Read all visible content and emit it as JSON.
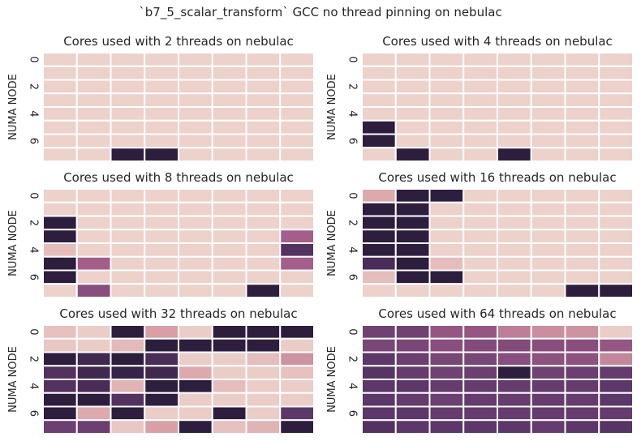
{
  "figure": {
    "title": "`b7_5_scalar_transform` GCC no thread pinning on nebulac",
    "ylabel": "NUMA NODE",
    "yticks": [
      "0",
      "2",
      "4",
      "6"
    ],
    "colormap": {
      "stops": [
        "#edd1cb",
        "#d8a0a6",
        "#a55e8a",
        "#5c3769",
        "#2d1e3e"
      ],
      "low": 0,
      "high": 1
    }
  },
  "chart_data": [
    {
      "type": "heatmap",
      "title": "Cores used with 2 threads on nebulac",
      "ylabel": "NUMA NODE",
      "rows": 8,
      "cols": 8,
      "values": [
        [
          0,
          0,
          0,
          0,
          0,
          0,
          0,
          0
        ],
        [
          0,
          0,
          0,
          0,
          0,
          0,
          0,
          0
        ],
        [
          0,
          0,
          0,
          0,
          0,
          0,
          0,
          0
        ],
        [
          0,
          0,
          0,
          0,
          0,
          0,
          0,
          0
        ],
        [
          0,
          0,
          0,
          0,
          0,
          0,
          0,
          0
        ],
        [
          0,
          0,
          0,
          0,
          0,
          0,
          0,
          0
        ],
        [
          0,
          0,
          0,
          0,
          0,
          0,
          0,
          0
        ],
        [
          0,
          0,
          1,
          1,
          0,
          0,
          0,
          0
        ]
      ]
    },
    {
      "type": "heatmap",
      "title": "Cores used with 4 threads on nebulac",
      "ylabel": "NUMA NODE",
      "rows": 8,
      "cols": 8,
      "values": [
        [
          0,
          0,
          0,
          0,
          0,
          0,
          0,
          0
        ],
        [
          0,
          0,
          0,
          0,
          0,
          0,
          0,
          0
        ],
        [
          0,
          0,
          0,
          0,
          0,
          0,
          0,
          0
        ],
        [
          0,
          0,
          0,
          0,
          0,
          0,
          0,
          0
        ],
        [
          0,
          0,
          0,
          0,
          0,
          0,
          0,
          0
        ],
        [
          1,
          0,
          0,
          0,
          0,
          0,
          0,
          0
        ],
        [
          1,
          0,
          0,
          0,
          0,
          0,
          0,
          0
        ],
        [
          0,
          1,
          0,
          0,
          1,
          0,
          0,
          0
        ]
      ]
    },
    {
      "type": "heatmap",
      "title": "Cores used with 8 threads on nebulac",
      "ylabel": "NUMA NODE",
      "rows": 8,
      "cols": 8,
      "values": [
        [
          0,
          0,
          0,
          0,
          0,
          0,
          0,
          0
        ],
        [
          0,
          0,
          0,
          0,
          0,
          0,
          0,
          0
        ],
        [
          1,
          0,
          0,
          0,
          0,
          0,
          0,
          0
        ],
        [
          1,
          0,
          0,
          0,
          0,
          0,
          0,
          0.5
        ],
        [
          0.1,
          0,
          0,
          0,
          0,
          0,
          0,
          0.8
        ],
        [
          1,
          0.5,
          0,
          0,
          0,
          0,
          0,
          0.5
        ],
        [
          1,
          0,
          0,
          0,
          0,
          0,
          0,
          0
        ],
        [
          0,
          0.6,
          0,
          0,
          0,
          0,
          1,
          0
        ]
      ]
    },
    {
      "type": "heatmap",
      "title": "Cores used with 16 threads on nebulac",
      "ylabel": "NUMA NODE",
      "rows": 8,
      "cols": 8,
      "values": [
        [
          0.2,
          1,
          1,
          0,
          0,
          0,
          0,
          0
        ],
        [
          1,
          1,
          0,
          0,
          0,
          0,
          0,
          0
        ],
        [
          1,
          1,
          0,
          0,
          0,
          0,
          0,
          0
        ],
        [
          1,
          1,
          0,
          0,
          0,
          0,
          0,
          0
        ],
        [
          1,
          1,
          0,
          0,
          0,
          0,
          0,
          0
        ],
        [
          0.85,
          1,
          0.1,
          0,
          0,
          0,
          0,
          0
        ],
        [
          0.1,
          1,
          1,
          0,
          0,
          0,
          0,
          0
        ],
        [
          0,
          0,
          0,
          0,
          0,
          0,
          1,
          1
        ]
      ]
    },
    {
      "type": "heatmap",
      "title": "Cores used with 32 threads on nebulac",
      "ylabel": "NUMA NODE",
      "rows": 8,
      "cols": 8,
      "values": [
        [
          0.08,
          0.02,
          1,
          0.25,
          0.02,
          1,
          1,
          1
        ],
        [
          0.05,
          0.02,
          0.12,
          1,
          1,
          1,
          1,
          0.02
        ],
        [
          1,
          0.9,
          1,
          0.85,
          0.02,
          0.02,
          0.1,
          0.3
        ],
        [
          0.8,
          0.9,
          0.95,
          0.9,
          0.2,
          0.02,
          0.02,
          0.08
        ],
        [
          0.8,
          0.85,
          0.15,
          1,
          1,
          0.1,
          0.02,
          0.02
        ],
        [
          1,
          1,
          0.8,
          1,
          0.02,
          0.02,
          0.02,
          0.02
        ],
        [
          1,
          0.2,
          1,
          0.02,
          0.02,
          1,
          0.02,
          0.75
        ],
        [
          0.7,
          0.7,
          0.05,
          0.25,
          1,
          0.08,
          0.15,
          1
        ]
      ]
    },
    {
      "type": "heatmap",
      "title": "Cores used with 64 threads on nebulac",
      "ylabel": "NUMA NODE",
      "rows": 8,
      "cols": 8,
      "values": [
        [
          0.68,
          0.68,
          0.55,
          0.55,
          0.38,
          0.32,
          0.3,
          0.02
        ],
        [
          0.65,
          0.65,
          0.6,
          0.62,
          0.62,
          0.6,
          0.6,
          0.55
        ],
        [
          0.75,
          0.7,
          0.65,
          0.65,
          0.6,
          0.58,
          0.58,
          0.35
        ],
        [
          0.78,
          0.72,
          0.68,
          0.7,
          1,
          0.68,
          0.7,
          0.72
        ],
        [
          0.75,
          0.75,
          0.72,
          0.72,
          0.72,
          0.72,
          0.72,
          0.75
        ],
        [
          0.75,
          0.72,
          0.7,
          0.72,
          0.72,
          0.72,
          0.72,
          0.75
        ],
        [
          0.75,
          0.75,
          0.72,
          0.72,
          0.72,
          0.72,
          0.72,
          0.72
        ],
        [
          0.8,
          0.75,
          0.75,
          0.75,
          0.75,
          0.72,
          0.75,
          0.78
        ]
      ]
    }
  ]
}
